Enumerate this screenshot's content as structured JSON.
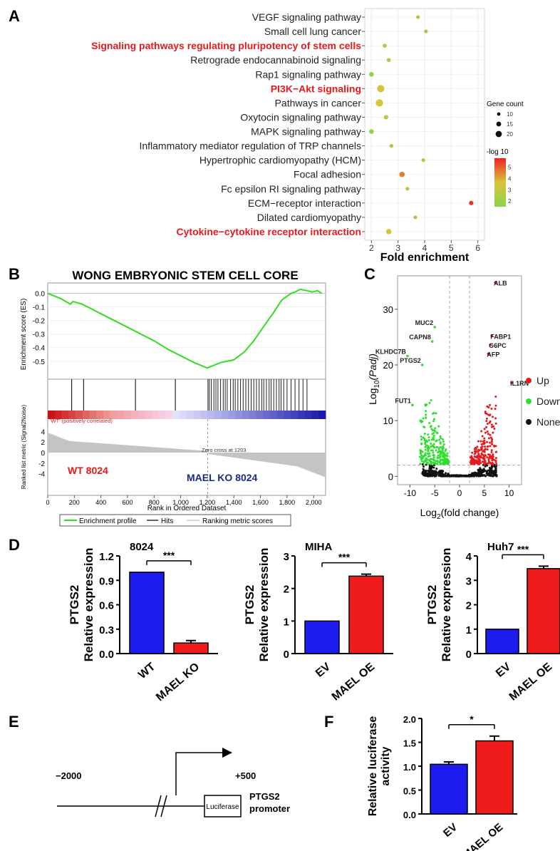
{
  "panel_labels": {
    "A": "A",
    "B": "B",
    "C": "C",
    "D": "D",
    "E": "E",
    "F": "F"
  },
  "chart_data": [
    {
      "panel": "A",
      "type": "scatter",
      "categories": [
        "VEGF signaling pathway",
        "Small cell lung cancer",
        "Signaling pathways regulating pluripotency of stem cells",
        "Retrograde endocannabinoid signaling",
        "Rap1 signaling pathway",
        "PI3K−Akt signaling",
        "Pathways in cancer",
        "Oxytocin signaling pathway",
        "MAPK signaling pathway",
        "Inflammatory mediator regulation of TRP channels",
        "Hypertrophic cardiomyopathy (HCM)",
        "Focal adhesion",
        "Fc epsilon RI signaling pathway",
        "ECM−receptor interaction",
        "Dilated cardiomyopathy",
        "Cytokine−cytokine receptor interaction"
      ],
      "highlighted": [
        "Signaling pathways regulating pluripotency of stem cells",
        "PI3K−Akt signaling",
        "Cytokine−cytokine receptor interaction"
      ],
      "highlight_color": "#e8191b",
      "x": [
        3.75,
        4.05,
        2.5,
        2.65,
        2.0,
        2.35,
        2.3,
        2.55,
        2.0,
        2.75,
        3.95,
        3.15,
        3.35,
        5.75,
        3.65,
        2.65
      ],
      "gene_count": [
        9,
        9,
        10,
        10,
        12,
        20,
        20,
        11,
        12,
        9,
        9,
        14,
        9,
        11,
        9,
        14
      ],
      "neg_log10": [
        2.0,
        1.9,
        2.4,
        2.3,
        1.8,
        3.6,
        3.5,
        2.5,
        1.8,
        2.1,
        2.0,
        4.6,
        2.2,
        5.6,
        2.2,
        3.6
      ],
      "xlabel": "Fold enrichment",
      "xticks": [
        2,
        3,
        4,
        5,
        6
      ],
      "xlim": [
        1.75,
        6.25
      ],
      "size_legend": {
        "title": "Gene count",
        "values": [
          10,
          15,
          20
        ]
      },
      "color_legend": {
        "title": "-log 10",
        "ticks": [
          2,
          3,
          4,
          5
        ],
        "low_color": "#8cd24a",
        "mid_color": "#d9c43a",
        "high_color": "#ee2222",
        "range": [
          1.5,
          5.8
        ]
      }
    },
    {
      "panel": "B",
      "type": "line",
      "title": "WONG EMBRYONIC STEM CELL CORE",
      "ylabel": "Enrichment score (ES)",
      "yticks": [
        "0.0",
        "-0.1",
        "-0.2",
        "-0.3",
        "-0.4",
        "-0.5"
      ],
      "ylim": [
        -0.58,
        0.04
      ],
      "x": [
        0,
        100,
        170,
        190,
        260,
        300,
        400,
        500,
        600,
        700,
        800,
        900,
        1000,
        1100,
        1200,
        1300,
        1400,
        1480,
        1550,
        1620,
        1700,
        1760,
        1830,
        1860,
        1900,
        1950,
        1990,
        2030,
        2060
      ],
      "y": [
        0.0,
        -0.04,
        -0.08,
        -0.06,
        -0.08,
        -0.1,
        -0.15,
        -0.2,
        -0.25,
        -0.3,
        -0.35,
        -0.41,
        -0.46,
        -0.51,
        -0.55,
        -0.51,
        -0.49,
        -0.43,
        -0.35,
        -0.25,
        -0.14,
        -0.05,
        0.0,
        0.01,
        0.03,
        0.02,
        0.01,
        0.02,
        0.0
      ],
      "hits": [
        180,
        270,
        660,
        960,
        1205,
        1215,
        1230,
        1250,
        1265,
        1280,
        1300,
        1320,
        1335,
        1350,
        1375,
        1395,
        1410,
        1430,
        1450,
        1470,
        1490,
        1510,
        1530,
        1550,
        1570,
        1590,
        1610,
        1625,
        1645,
        1665,
        1680,
        1700,
        1720,
        1740,
        1755,
        1775,
        1800,
        1830,
        1860,
        1890,
        1920,
        1950
      ],
      "metric_ylabel": "Ranked list metric (Signal2Noise)",
      "metric_yticks": [
        "4",
        "2",
        "0",
        "-2",
        "-4"
      ],
      "metric_ylim": [
        -5,
        5
      ],
      "positive_label": "'WT' (positively correlated)",
      "zero_cross_label": "Zero cross at 1203",
      "zero_cross": 1203,
      "wt_label": "WT 8024",
      "ko_label": "MAEL KO 8024",
      "xlabel": "Rank in Ordered Dataset",
      "xticks": [
        "0",
        "200",
        "400",
        "600",
        "800",
        "1,000",
        "1,200",
        "1,400",
        "1,600",
        "1,800",
        "2,000"
      ],
      "xlim": [
        0,
        2090
      ],
      "legend": [
        "Enrichment profile",
        "Hits",
        "Ranking metric scores"
      ]
    },
    {
      "panel": "C",
      "type": "scatter",
      "xlabel_main": "Log",
      "xlabel_sub": "2",
      "xlabel_rest": "(fold change)",
      "ylabel_main": "Log",
      "ylabel_sub": "10",
      "ylabel_rest": "(Padj)",
      "xticks": [
        -10,
        -5,
        0,
        5,
        10
      ],
      "yticks": [
        0,
        10,
        20,
        30
      ],
      "xlim": [
        -12.5,
        12.5
      ],
      "ylim": [
        -1.5,
        36
      ],
      "fc_threshold": [
        -2,
        2
      ],
      "padj_threshold": 2,
      "legend": [
        {
          "label": "Up",
          "color": "#e8191b"
        },
        {
          "label": "Down",
          "color": "#2ee02e"
        },
        {
          "label": "None",
          "color": "#111111"
        }
      ],
      "labeled_genes": [
        {
          "name": "ALB",
          "x": 7.2,
          "y": 34.8,
          "color": "#e8191b"
        },
        {
          "name": "MUC2",
          "x": -5.0,
          "y": 26.8,
          "color": "#2ee02e"
        },
        {
          "name": "FABP1",
          "x": 6.5,
          "y": 25.2,
          "color": "#e8191b"
        },
        {
          "name": "CAPN8",
          "x": -5.5,
          "y": 24.2,
          "color": "#2ee02e"
        },
        {
          "name": "G6PC",
          "x": 6.2,
          "y": 23.6,
          "color": "#e8191b"
        },
        {
          "name": "AFP",
          "x": 5.8,
          "y": 22.0,
          "color": "#e8191b"
        },
        {
          "name": "KLHDC7B",
          "x": -10.5,
          "y": 21.6,
          "color": "#2ee02e"
        },
        {
          "name": "PTGS2",
          "x": -7.5,
          "y": 20.0,
          "color": "#2ee02e"
        },
        {
          "name": "IL1RN",
          "x": 10.5,
          "y": 16.8,
          "color": "#e8191b"
        },
        {
          "name": "FUT1",
          "x": -9.5,
          "y": 12.8,
          "color": "#2ee02e"
        }
      ]
    },
    {
      "panel": "D1",
      "type": "bar",
      "title": "8024",
      "ylabel": "PTGS2\nRelative expression",
      "ylabel_line1": "PTGS2",
      "ylabel_line2": "Relative expression",
      "categories": [
        "WT",
        "MAEL KO"
      ],
      "values": [
        1.0,
        0.13
      ],
      "errors": [
        0.0,
        0.03
      ],
      "colors": [
        "#1c1cf0",
        "#f01c1c"
      ],
      "ylim": [
        0,
        1.2
      ],
      "yticks": [
        "0.0",
        "0.3",
        "0.6",
        "0.9",
        "1.2"
      ],
      "significance": "***"
    },
    {
      "panel": "D2",
      "type": "bar",
      "title": "MIHA",
      "ylabel_line1": "PTGS2",
      "ylabel_line2": "Relative expression",
      "categories": [
        "EV",
        "MAEL OE"
      ],
      "values": [
        1.0,
        2.38
      ],
      "errors": [
        0.0,
        0.06
      ],
      "colors": [
        "#1c1cf0",
        "#f01c1c"
      ],
      "ylim": [
        0,
        3
      ],
      "yticks": [
        "0",
        "1",
        "2",
        "3"
      ],
      "significance": "***"
    },
    {
      "panel": "D3",
      "type": "bar",
      "title": "Huh7",
      "ylabel_line1": "PTGS2",
      "ylabel_line2": "Relative expression",
      "categories": [
        "EV",
        "MAEL OE"
      ],
      "values": [
        1.0,
        3.48
      ],
      "errors": [
        0.0,
        0.1
      ],
      "colors": [
        "#1c1cf0",
        "#f01c1c"
      ],
      "ylim": [
        0,
        4
      ],
      "yticks": [
        "0",
        "1",
        "2",
        "3",
        "4"
      ],
      "significance": "***"
    },
    {
      "panel": "F",
      "type": "bar",
      "ylabel_line1": "Relative luciferase",
      "ylabel_line2": "activity",
      "categories": [
        "EV",
        "MAEL OE"
      ],
      "values": [
        1.04,
        1.53
      ],
      "errors": [
        0.05,
        0.1
      ],
      "colors": [
        "#1c1cf0",
        "#f01c1c"
      ],
      "ylim": [
        0,
        2.0
      ],
      "yticks": [
        "0.0",
        "0.5",
        "1.0",
        "1.5",
        "2.0"
      ],
      "significance": "*"
    }
  ],
  "diagram_e": {
    "start": "−2000",
    "end": "+500",
    "box_label": "Luciferase",
    "gene_line1": "PTGS2",
    "gene_line2": "promoter"
  }
}
